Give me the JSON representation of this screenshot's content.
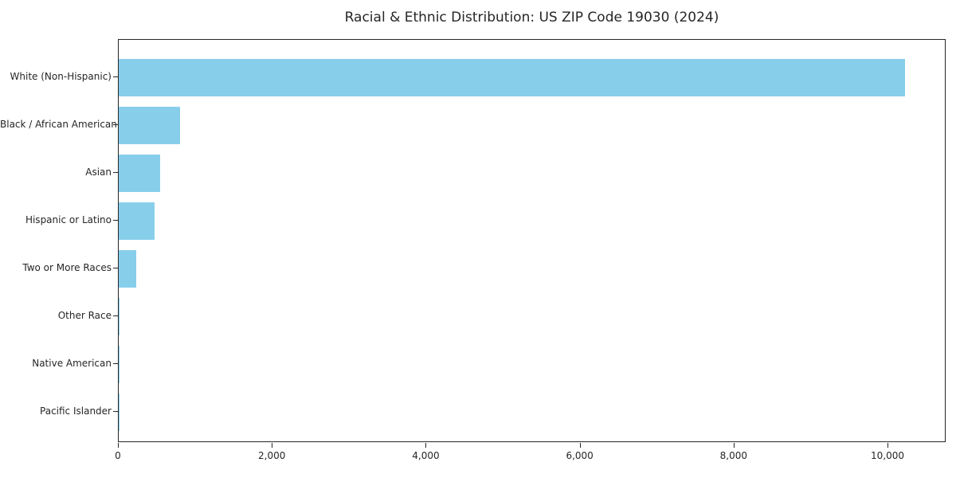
{
  "chart_data": {
    "type": "bar",
    "orientation": "horizontal",
    "title": "Racial & Ethnic Distribution: US ZIP Code 19030 (2024)",
    "categories": [
      "White (Non-Hispanic)",
      "Black / African American",
      "Asian",
      "Hispanic or Latino",
      "Two or More Races",
      "Other Race",
      "Native American",
      "Pacific Islander"
    ],
    "values": [
      10220,
      800,
      540,
      465,
      225,
      14,
      6,
      2
    ],
    "xlabel": "",
    "ylabel": "",
    "xlim": [
      0,
      10755
    ],
    "x_ticks": [
      0,
      2000,
      4000,
      6000,
      8000,
      10000
    ],
    "x_tick_labels": [
      "0",
      "2,000",
      "4,000",
      "6,000",
      "8,000",
      "10,000"
    ],
    "bar_color": "#87CEEB",
    "frame_color": "#262626",
    "grid": false,
    "legend": null
  }
}
